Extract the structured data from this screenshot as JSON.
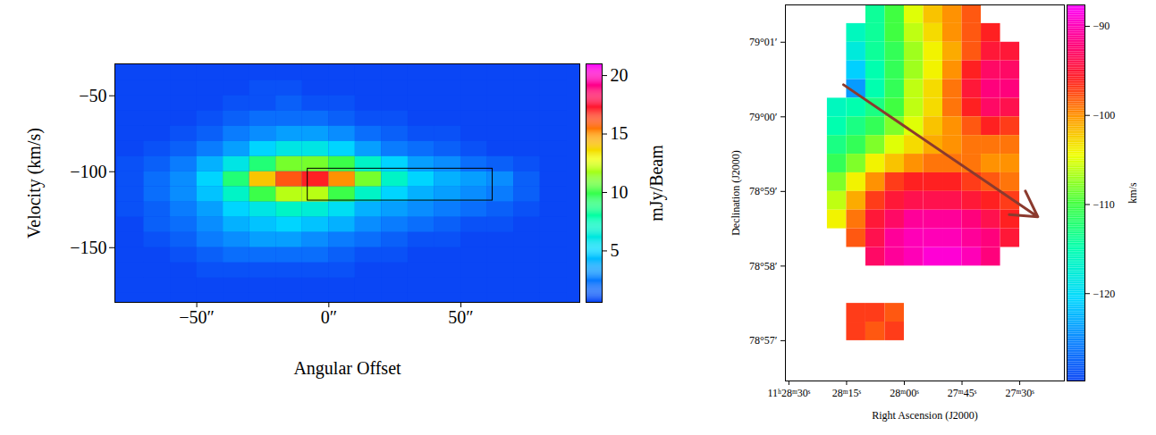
{
  "chart_data": [
    {
      "type": "heatmap",
      "x_label": "Angular Offset",
      "y_label": "Velocity (km/s)",
      "xlim": [
        -81,
        95
      ],
      "ylim": [
        -186,
        -29
      ],
      "xticks": [
        {
          "value": -50,
          "label": "−50″"
        },
        {
          "value": 0,
          "label": "0″"
        },
        {
          "value": 50,
          "label": "50″"
        }
      ],
      "yticks": [
        -50,
        -100,
        -150
      ],
      "x_edges": [
        -90,
        -80,
        -70,
        -60,
        -50,
        -40,
        -30,
        -20,
        -10,
        0,
        10,
        20,
        30,
        40,
        50,
        60,
        70,
        80,
        90
      ],
      "y_edges": [
        -30,
        -40,
        -50,
        -60,
        -70,
        -80,
        -90,
        -100,
        -110,
        -120,
        -130,
        -140,
        -150,
        -160,
        -170,
        -180,
        -190
      ],
      "cells": [
        [
          0.5,
          0.5,
          0.5,
          0.5,
          0.5,
          0.5,
          0.5,
          0.5,
          0.5,
          0.5,
          0.5,
          0.5,
          0.5,
          0.5,
          0.5,
          0.5,
          0.5,
          0.5
        ],
        [
          0.5,
          0.5,
          0.5,
          0.5,
          0.5,
          0.5,
          1,
          1,
          0.5,
          0.5,
          0.5,
          0.5,
          0.5,
          0.5,
          0.5,
          0.5,
          0.5,
          0.5
        ],
        [
          0.5,
          0.5,
          0.5,
          0.5,
          0.5,
          1,
          1,
          1.5,
          1,
          1,
          0.5,
          0.5,
          0.5,
          0.5,
          0.5,
          0.5,
          0.5,
          0.5
        ],
        [
          0.5,
          0.5,
          0.5,
          0.5,
          1,
          1.5,
          2,
          2,
          2,
          1.5,
          1,
          1,
          0.5,
          0.5,
          0.5,
          0.5,
          0.5,
          0.5
        ],
        [
          0.5,
          0.5,
          0.5,
          1,
          1.5,
          2.5,
          3,
          3.5,
          3.5,
          3,
          2,
          1.5,
          1,
          1,
          0.5,
          0.5,
          0.5,
          0.5
        ],
        [
          0.5,
          0.5,
          1,
          1.5,
          2.5,
          3.5,
          5,
          6,
          6,
          5,
          3.5,
          2.5,
          2,
          1.5,
          1,
          0.5,
          0.5,
          0.5
        ],
        [
          0.5,
          1,
          1.5,
          2.5,
          4,
          6,
          9,
          11,
          11,
          10,
          7,
          5,
          3.5,
          3,
          2,
          1.5,
          1,
          0.5
        ],
        [
          0.5,
          1,
          2,
          3,
          5,
          9,
          14,
          16,
          17,
          15,
          11,
          7,
          5,
          4,
          3.5,
          3,
          1.5,
          0.5
        ],
        [
          0.5,
          1,
          2,
          3,
          4.5,
          7,
          10,
          12,
          12,
          10,
          7,
          5,
          4,
          3.5,
          3,
          2.5,
          1.5,
          0.5
        ],
        [
          0.5,
          1,
          1.5,
          2.5,
          3.5,
          5,
          6,
          7,
          6.5,
          5.5,
          4,
          3.5,
          3,
          2.5,
          2,
          1.5,
          1,
          0.5
        ],
        [
          0.5,
          0.5,
          1.5,
          2,
          3,
          4,
          4.5,
          5,
          4.5,
          4,
          3,
          2.5,
          2,
          1.5,
          1,
          1,
          0.5,
          0.5
        ],
        [
          0.5,
          0.5,
          1,
          1.5,
          2.5,
          3,
          3.5,
          3.5,
          3,
          2.5,
          2,
          1.5,
          1,
          1,
          0.5,
          0.5,
          0.5,
          0.5
        ],
        [
          0.5,
          0.5,
          0.5,
          1,
          1.5,
          2,
          2,
          2,
          2,
          1.5,
          1,
          1,
          0.5,
          0.5,
          0.5,
          0.5,
          0.5,
          0.5
        ],
        [
          0.5,
          0.5,
          0.5,
          0.5,
          1,
          1,
          1,
          1,
          1,
          1,
          0.5,
          0.5,
          0.5,
          0.5,
          0.5,
          0.5,
          0.5,
          0.5
        ],
        [
          0.5,
          0.5,
          0.5,
          0.5,
          0.5,
          0.5,
          0.5,
          0.5,
          0.5,
          0.5,
          0.5,
          0.5,
          0.5,
          0.5,
          0.5,
          0.5,
          0.5,
          0.5
        ],
        [
          0.5,
          0.5,
          0.5,
          0.5,
          0.5,
          0.5,
          0.5,
          0.5,
          0.5,
          0.5,
          0.5,
          0.5,
          0.5,
          0.5,
          0.5,
          0.5,
          0.5,
          0.5
        ]
      ],
      "box": {
        "x": [
          -8,
          62
        ],
        "y": [
          -98,
          -119
        ]
      },
      "colorbar": {
        "label": "mJy/Beam",
        "range": [
          0.6,
          21
        ],
        "ticks": [
          5,
          10,
          15,
          20
        ]
      }
    },
    {
      "type": "heatmap",
      "x_label": "Right Ascension (J2000)",
      "y_label": "Declination (J2000)",
      "xlim": [
        41310.9,
        41238.4
      ],
      "ylim": [
        4736.46,
        4741.5
      ],
      "xticks": [
        {
          "value": 41310,
          "label": "11ʰ28ᵐ30ˢ"
        },
        {
          "value": 41295,
          "label": "28ᵐ15ˢ"
        },
        {
          "value": 41280,
          "label": "28ᵐ00ˢ"
        },
        {
          "value": 41265,
          "label": "27ᵐ45ˢ"
        },
        {
          "value": 41250,
          "label": "27ᵐ30ˢ"
        }
      ],
      "yticks": [
        {
          "value": 4741,
          "label": "79°01′"
        },
        {
          "value": 4740,
          "label": "79°00′"
        },
        {
          "value": 4739,
          "label": "78°59′"
        },
        {
          "value": 4738,
          "label": "78°58′"
        },
        {
          "value": 4737,
          "label": "78°57′"
        }
      ],
      "x_edges": [
        41300,
        41295,
        41290,
        41285,
        41280,
        41275,
        41270,
        41265,
        41260,
        41255,
        41250
      ],
      "y_edges": [
        4741.5,
        4741.25,
        4741,
        4740.75,
        4740.5,
        4740.25,
        4740,
        4739.75,
        4739.5,
        4739.25,
        4739,
        4738.75,
        4738.5,
        4738.25,
        4738,
        4737.75,
        4737.5,
        4737.25,
        4737,
        4736.75,
        4736.5
      ],
      "cells": [
        [
          null,
          null,
          -114,
          -110,
          -105,
          -102,
          -100,
          -98,
          null,
          null
        ],
        [
          null,
          -116,
          -114,
          -110,
          -106,
          -103,
          -100,
          -98,
          -96,
          null
        ],
        [
          null,
          -118,
          -114,
          -111,
          -107,
          -104,
          -101,
          -98,
          -95,
          -95
        ],
        [
          null,
          -121,
          -115,
          -111,
          -107,
          -104,
          -100,
          -96,
          -93,
          -93
        ],
        [
          null,
          -124,
          -115,
          -111,
          -106,
          -103,
          -99,
          -95,
          -92,
          -92
        ],
        [
          -116,
          -115,
          -113,
          -110,
          -106,
          -103,
          -99,
          -96,
          -93,
          -94
        ],
        [
          -115,
          -113,
          -111,
          -108,
          -105,
          -102,
          -100,
          -98,
          -96,
          -97
        ],
        [
          -113,
          -111,
          -108,
          -105,
          -103,
          -101,
          -100,
          -99,
          -99,
          -99
        ],
        [
          -111,
          -108,
          -104,
          -102,
          -100,
          -99,
          -99,
          -99,
          -100,
          -100
        ],
        [
          -108,
          -104,
          -100,
          -97,
          -96,
          -96,
          -96,
          -97,
          -98,
          -99
        ],
        [
          -106,
          -101,
          -97,
          -95,
          -94,
          -94,
          -94,
          -95,
          -96,
          -97
        ],
        [
          -104,
          -99,
          -95,
          -93,
          -91,
          -91,
          -91,
          -92,
          -94,
          -96
        ],
        [
          null,
          -98,
          -94,
          -91,
          -90,
          -90,
          -90,
          -91,
          -92,
          -95
        ],
        [
          null,
          null,
          -93,
          -91,
          -90,
          -89,
          -89,
          -90,
          -92,
          null
        ],
        [
          null,
          null,
          null,
          null,
          null,
          null,
          null,
          null,
          null,
          null
        ],
        [
          null,
          null,
          null,
          null,
          null,
          null,
          null,
          null,
          null,
          null
        ],
        [
          null,
          -97,
          -97,
          -98,
          null,
          null,
          null,
          null,
          null,
          null
        ],
        [
          null,
          -97,
          -98,
          -97,
          null,
          null,
          null,
          null,
          null,
          null
        ],
        [
          null,
          null,
          null,
          null,
          null,
          null,
          null,
          null,
          null,
          null
        ],
        [
          null,
          null,
          null,
          null,
          null,
          null,
          null,
          null,
          null,
          null
        ]
      ],
      "arrow": {
        "x": [
          41295.8,
          41245.3
        ],
        "y": [
          4740.43,
          4738.66
        ]
      },
      "colorbar": {
        "label": "km/s",
        "range": [
          -129.8,
          -87.6
        ],
        "ticks": [
          -90,
          -100,
          -110,
          -120
        ]
      }
    }
  ]
}
